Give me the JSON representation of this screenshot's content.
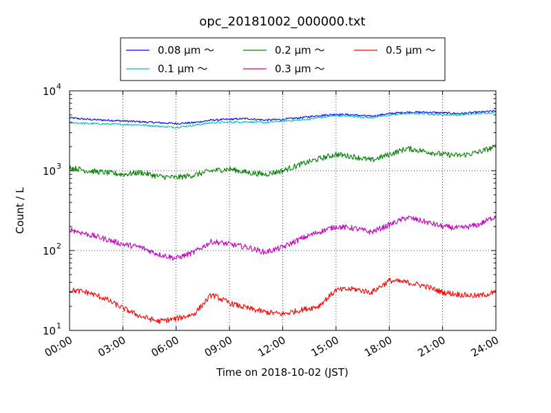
{
  "chart_data": {
    "type": "line",
    "title": "opc_20181002_000000.txt",
    "xlabel": "Time on 2018-10-02 (JST)",
    "ylabel": "Count / L",
    "xlim": [
      0,
      24
    ],
    "ylim": [
      10,
      10000
    ],
    "yscale": "log",
    "grid": true,
    "legend_position": "top-center",
    "x_ticks": [
      {
        "value": 0,
        "label": "00:00"
      },
      {
        "value": 3,
        "label": "03:00"
      },
      {
        "value": 6,
        "label": "06:00"
      },
      {
        "value": 9,
        "label": "09:00"
      },
      {
        "value": 12,
        "label": "12:00"
      },
      {
        "value": 15,
        "label": "15:00"
      },
      {
        "value": 18,
        "label": "18:00"
      },
      {
        "value": 21,
        "label": "21:00"
      },
      {
        "value": 24,
        "label": "24:00"
      }
    ],
    "y_ticks": [
      {
        "value": 10,
        "base": "10",
        "exp": "1"
      },
      {
        "value": 100,
        "base": "10",
        "exp": "2"
      },
      {
        "value": 1000,
        "base": "10",
        "exp": "3"
      },
      {
        "value": 10000,
        "base": "10",
        "exp": "4"
      }
    ],
    "x": [
      0,
      1,
      2,
      3,
      4,
      5,
      6,
      7,
      8,
      9,
      10,
      11,
      12,
      13,
      14,
      15,
      16,
      17,
      18,
      19,
      20,
      21,
      22,
      23,
      24
    ],
    "series": [
      {
        "name": "0.08 μm ～",
        "color": "#0000ff",
        "values": [
          4600,
          4400,
          4300,
          4200,
          4100,
          4000,
          3900,
          4000,
          4300,
          4400,
          4500,
          4300,
          4400,
          4600,
          4900,
          5100,
          5000,
          4800,
          5200,
          5400,
          5400,
          5300,
          5200,
          5400,
          5600
        ]
      },
      {
        "name": "0.1 μm ～",
        "color": "#00bfbf",
        "values": [
          4000,
          3900,
          3850,
          3800,
          3750,
          3600,
          3500,
          3700,
          4000,
          4050,
          4100,
          4000,
          4200,
          4300,
          4600,
          4900,
          4800,
          4600,
          5000,
          5200,
          5200,
          5000,
          5000,
          5200,
          5400
        ]
      },
      {
        "name": "0.2 μm ～",
        "color": "#008000",
        "values": [
          1100,
          1000,
          950,
          900,
          950,
          850,
          820,
          880,
          1000,
          1050,
          950,
          900,
          1000,
          1200,
          1400,
          1600,
          1500,
          1350,
          1600,
          1900,
          1750,
          1600,
          1550,
          1700,
          2000
        ]
      },
      {
        "name": "0.3 μm ～",
        "color": "#bf00bf",
        "values": [
          185,
          160,
          140,
          120,
          110,
          90,
          80,
          95,
          130,
          120,
          110,
          95,
          110,
          140,
          170,
          200,
          190,
          170,
          210,
          260,
          230,
          200,
          190,
          210,
          270
        ]
      },
      {
        "name": "0.5 μm ～",
        "color": "#ff0000",
        "values": [
          32,
          30,
          25,
          19,
          15,
          13,
          14,
          16,
          28,
          22,
          19,
          17,
          16,
          18,
          20,
          32,
          33,
          30,
          42,
          40,
          36,
          30,
          28,
          27,
          30
        ]
      }
    ]
  }
}
